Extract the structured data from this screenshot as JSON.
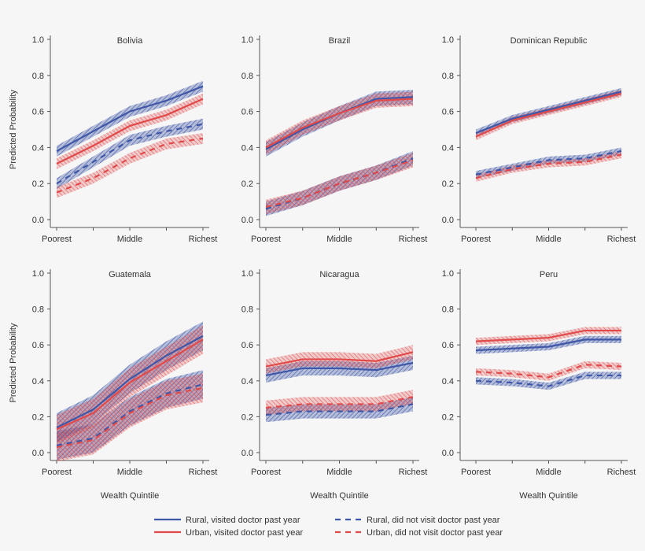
{
  "chart_data": {
    "type": "line",
    "layout": "small-multiples-2x3",
    "x_categories": [
      "Poorest",
      "",
      "Middle",
      "",
      "Richest"
    ],
    "x_tick_labels": [
      "Poorest",
      "Middle",
      "Richest"
    ],
    "xlabel": "Wealth Quintile",
    "ylabel": "Predicted Probability",
    "ylim": [
      0,
      1
    ],
    "y_ticks": [
      "0.0",
      "0.2",
      "0.4",
      "0.6",
      "0.8",
      "1.0"
    ],
    "grid": false,
    "legend_placement": "bottom",
    "legend": [
      {
        "key": "rv",
        "label": "Rural, visited doctor past year",
        "color": "#3f57a6",
        "dash": false
      },
      {
        "key": "uv",
        "label": "Urban, visited doctor past year",
        "color": "#e04a4a",
        "dash": false
      },
      {
        "key": "rn",
        "label": "Rural, did not visit doctor past year",
        "color": "#3f57a6",
        "dash": true
      },
      {
        "key": "un",
        "label": "Urban, did not visit doctor past year",
        "color": "#e04a4a",
        "dash": true
      }
    ],
    "panels": [
      {
        "title": "Bolivia",
        "ci_halfwidth": 0.03,
        "series": {
          "rv": [
            0.38,
            0.49,
            0.6,
            0.66,
            0.74
          ],
          "uv": [
            0.31,
            0.41,
            0.52,
            0.58,
            0.67
          ],
          "rn": [
            0.2,
            0.32,
            0.44,
            0.49,
            0.53
          ],
          "un": [
            0.15,
            0.23,
            0.34,
            0.42,
            0.45
          ]
        }
      },
      {
        "title": "Brazil",
        "ci_halfwidth": 0.04,
        "series": {
          "rv": [
            0.39,
            0.5,
            0.59,
            0.67,
            0.68
          ],
          "uv": [
            0.4,
            0.51,
            0.59,
            0.66,
            0.67
          ],
          "rn": [
            0.06,
            0.12,
            0.2,
            0.26,
            0.34
          ],
          "un": [
            0.07,
            0.12,
            0.2,
            0.26,
            0.33
          ]
        }
      },
      {
        "title": "Dominican Republic",
        "ci_halfwidth": 0.02,
        "series": {
          "rv": [
            0.48,
            0.56,
            0.61,
            0.66,
            0.71
          ],
          "uv": [
            0.46,
            0.55,
            0.6,
            0.65,
            0.7
          ],
          "rn": [
            0.25,
            0.29,
            0.33,
            0.34,
            0.38
          ],
          "un": [
            0.23,
            0.28,
            0.31,
            0.32,
            0.36
          ]
        }
      },
      {
        "title": "Guatemala",
        "ci_halfwidth": 0.08,
        "series": {
          "rv": [
            0.14,
            0.24,
            0.41,
            0.54,
            0.65
          ],
          "uv": [
            0.13,
            0.22,
            0.39,
            0.51,
            0.63
          ],
          "rn": [
            0.04,
            0.08,
            0.23,
            0.33,
            0.38
          ],
          "un": [
            0.03,
            0.07,
            0.22,
            0.32,
            0.36
          ]
        }
      },
      {
        "title": "Nicaragua",
        "ci_halfwidth": 0.04,
        "series": {
          "rv": [
            0.43,
            0.47,
            0.47,
            0.46,
            0.5
          ],
          "uv": [
            0.48,
            0.52,
            0.52,
            0.51,
            0.56
          ],
          "rn": [
            0.21,
            0.23,
            0.23,
            0.23,
            0.27
          ],
          "un": [
            0.25,
            0.27,
            0.27,
            0.27,
            0.31
          ]
        }
      },
      {
        "title": "Peru",
        "ci_halfwidth": 0.02,
        "series": {
          "rv": [
            0.57,
            0.58,
            0.59,
            0.63,
            0.63
          ],
          "uv": [
            0.62,
            0.63,
            0.64,
            0.68,
            0.68
          ],
          "rn": [
            0.4,
            0.39,
            0.37,
            0.43,
            0.43
          ],
          "un": [
            0.45,
            0.44,
            0.42,
            0.49,
            0.48
          ]
        }
      }
    ]
  }
}
